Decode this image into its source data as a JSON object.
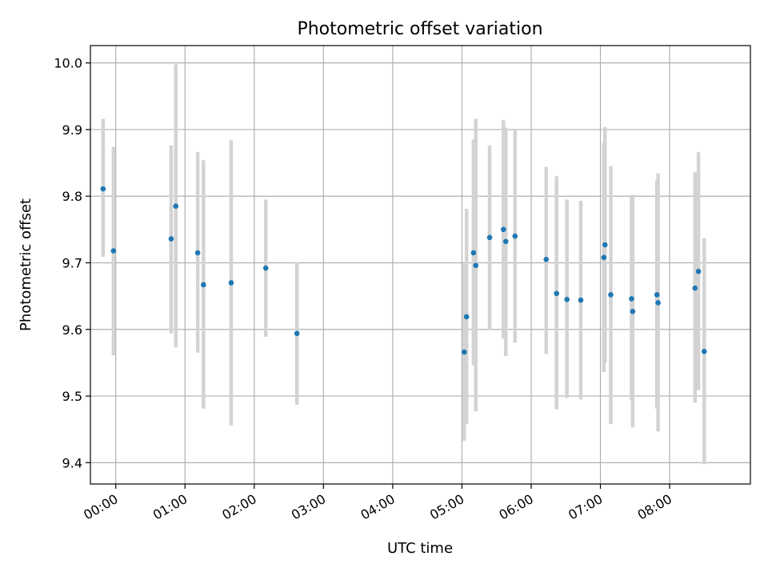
{
  "chart_data": {
    "type": "scatter",
    "title": "Photometric offset variation",
    "xlabel": "UTC time",
    "ylabel": "Photometric offset",
    "x_unit": "UTC time (HH:MM)",
    "xlim": [
      "23:38",
      "09:10"
    ],
    "ylim": [
      9.368,
      10.026
    ],
    "xticks": [
      "00:00",
      "01:00",
      "02:00",
      "03:00",
      "04:00",
      "05:00",
      "06:00",
      "07:00",
      "08:00"
    ],
    "yticks": [
      "9.4",
      "9.5",
      "9.6",
      "9.7",
      "9.8",
      "9.9",
      "10.0"
    ],
    "grid": true,
    "error_bar_color": "#d3d3d3",
    "point_color": "#1f77b4",
    "series": [
      {
        "points": [
          {
            "t": "23:49",
            "y": 9.811,
            "lo": 9.709,
            "hi": 9.916
          },
          {
            "t": "23:58",
            "y": 9.718,
            "lo": 9.561,
            "hi": 9.874
          },
          {
            "t": "00:48",
            "y": 9.736,
            "lo": 9.594,
            "hi": 9.876
          },
          {
            "t": "00:52",
            "y": 9.785,
            "lo": 9.573,
            "hi": 9.998
          },
          {
            "t": "01:11",
            "y": 9.715,
            "lo": 9.565,
            "hi": 9.866
          },
          {
            "t": "01:16",
            "y": 9.667,
            "lo": 9.481,
            "hi": 9.854
          },
          {
            "t": "01:40",
            "y": 9.67,
            "lo": 9.456,
            "hi": 9.884
          },
          {
            "t": "02:10",
            "y": 9.692,
            "lo": 9.589,
            "hi": 9.795
          },
          {
            "t": "02:37",
            "y": 9.594,
            "lo": 9.487,
            "hi": 9.701
          },
          {
            "t": "05:02",
            "y": 9.566,
            "lo": 9.433,
            "hi": 9.699
          },
          {
            "t": "05:04",
            "y": 9.619,
            "lo": 9.458,
            "hi": 9.781
          },
          {
            "t": "05:10",
            "y": 9.715,
            "lo": 9.546,
            "hi": 9.885
          },
          {
            "t": "05:12",
            "y": 9.696,
            "lo": 9.477,
            "hi": 9.916
          },
          {
            "t": "05:24",
            "y": 9.738,
            "lo": 9.6,
            "hi": 9.876
          },
          {
            "t": "05:36",
            "y": 9.75,
            "lo": 9.586,
            "hi": 9.914
          },
          {
            "t": "05:38",
            "y": 9.732,
            "lo": 9.56,
            "hi": 9.903
          },
          {
            "t": "05:46",
            "y": 9.74,
            "lo": 9.58,
            "hi": 9.9
          },
          {
            "t": "06:13",
            "y": 9.705,
            "lo": 9.563,
            "hi": 9.844
          },
          {
            "t": "06:22",
            "y": 9.654,
            "lo": 9.48,
            "hi": 9.83
          },
          {
            "t": "06:31",
            "y": 9.645,
            "lo": 9.497,
            "hi": 9.795
          },
          {
            "t": "06:43",
            "y": 9.644,
            "lo": 9.495,
            "hi": 9.793
          },
          {
            "t": "07:03",
            "y": 9.708,
            "lo": 9.536,
            "hi": 9.88
          },
          {
            "t": "07:04",
            "y": 9.727,
            "lo": 9.55,
            "hi": 9.904
          },
          {
            "t": "07:09",
            "y": 9.652,
            "lo": 9.458,
            "hi": 9.845
          },
          {
            "t": "07:27",
            "y": 9.646,
            "lo": 9.494,
            "hi": 9.799
          },
          {
            "t": "07:28",
            "y": 9.627,
            "lo": 9.453,
            "hi": 9.802
          },
          {
            "t": "07:49",
            "y": 9.652,
            "lo": 9.481,
            "hi": 9.824
          },
          {
            "t": "07:50",
            "y": 9.64,
            "lo": 9.447,
            "hi": 9.834
          },
          {
            "t": "08:22",
            "y": 9.662,
            "lo": 9.49,
            "hi": 9.836
          },
          {
            "t": "08:25",
            "y": 9.687,
            "lo": 9.509,
            "hi": 9.866
          },
          {
            "t": "08:30",
            "y": 9.567,
            "lo": 9.398,
            "hi": 9.737
          }
        ]
      }
    ]
  }
}
